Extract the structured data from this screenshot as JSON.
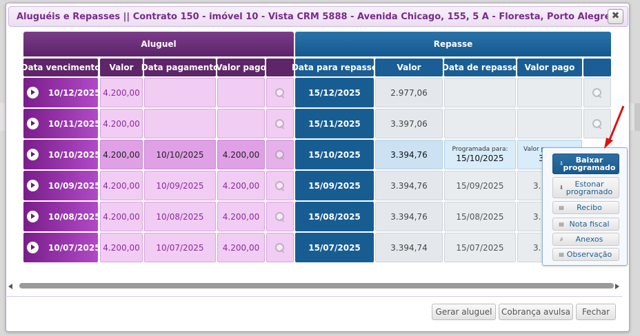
{
  "dialog": {
    "title": "Aluguéis e Repasses || Contrato 150 - imóvel 10 - Vista CRM 5888 - Avenida Chicago, 155, 5 A - Floresta, Porto Alegre...",
    "close_icon": "close-icon"
  },
  "groups": {
    "aluguel": "Aluguel",
    "repasse": "Repasse"
  },
  "columns": {
    "aluguel": [
      "Data vencimento",
      "Valor",
      "Data pagamento",
      "Valor pago",
      ""
    ],
    "repasse": [
      "Data para repasse",
      "Valor",
      "Data de repasse",
      "Valor pago",
      ""
    ]
  },
  "rows": [
    {
      "vencimento": "10/12/2025",
      "valor": "4.200,00",
      "data_pagamento": "",
      "valor_pago": "",
      "data_repasse_prev": "15/12/2025",
      "valor_repasse": "2.977,06",
      "data_repasse": "",
      "valor_pago_repasse": ""
    },
    {
      "vencimento": "10/11/2025",
      "valor": "4.200,00",
      "data_pagamento": "",
      "valor_pago": "",
      "data_repasse_prev": "15/11/2025",
      "valor_repasse": "3.397,06",
      "data_repasse": "",
      "valor_pago_repasse": ""
    },
    {
      "vencimento": "10/10/2025",
      "valor": "4.200,00",
      "data_pagamento": "10/10/2025",
      "valor_pago": "4.200,00",
      "data_repasse_prev": "15/10/2025",
      "valor_repasse": "3.394,76",
      "programada_label": "Programada para:",
      "data_repasse": "15/10/2025",
      "valor_programado_label": "Valor p",
      "valor_pago_repasse": "3."
    },
    {
      "vencimento": "10/09/2025",
      "valor": "4.200,00",
      "data_pagamento": "10/09/2025",
      "valor_pago": "4.200,00",
      "data_repasse_prev": "15/09/2025",
      "valor_repasse": "3.394,76",
      "data_repasse": "15/09/2025",
      "valor_pago_repasse": "3."
    },
    {
      "vencimento": "10/08/2025",
      "valor": "4.200,00",
      "data_pagamento": "10/08/2025",
      "valor_pago": "4.200,00",
      "data_repasse_prev": "15/08/2025",
      "valor_repasse": "3.394,76",
      "data_repasse": "15/08/2025",
      "valor_pago_repasse": "3."
    },
    {
      "vencimento": "10/07/2025",
      "valor": "4.200,00",
      "data_pagamento": "10/07/2025",
      "valor_pago": "4.200,00",
      "data_repasse_prev": "15/07/2025",
      "valor_repasse": "3.394,74",
      "data_repasse": "15/07/2025",
      "valor_pago_repasse": "3."
    }
  ],
  "context_menu": {
    "items": [
      {
        "label": "Baixar programado",
        "icon": "download-icon"
      },
      {
        "label": "Estonar programado",
        "icon": "download-icon"
      },
      {
        "label": "Recibo",
        "icon": "printer-icon"
      },
      {
        "label": "Nota fiscal",
        "icon": "printer-icon"
      },
      {
        "label": "Anexos",
        "icon": "paperclip-icon"
      },
      {
        "label": "Observação",
        "icon": "printer-icon"
      }
    ]
  },
  "footer": {
    "gerar_aluguel": "Gerar aluguel",
    "cobranca_avulsa": "Cobrança avulsa",
    "fechar": "Fechar"
  },
  "colors": {
    "aluguel": "#5e2569",
    "repasse": "#1a5e95",
    "accent_arrow": "#e01010"
  }
}
